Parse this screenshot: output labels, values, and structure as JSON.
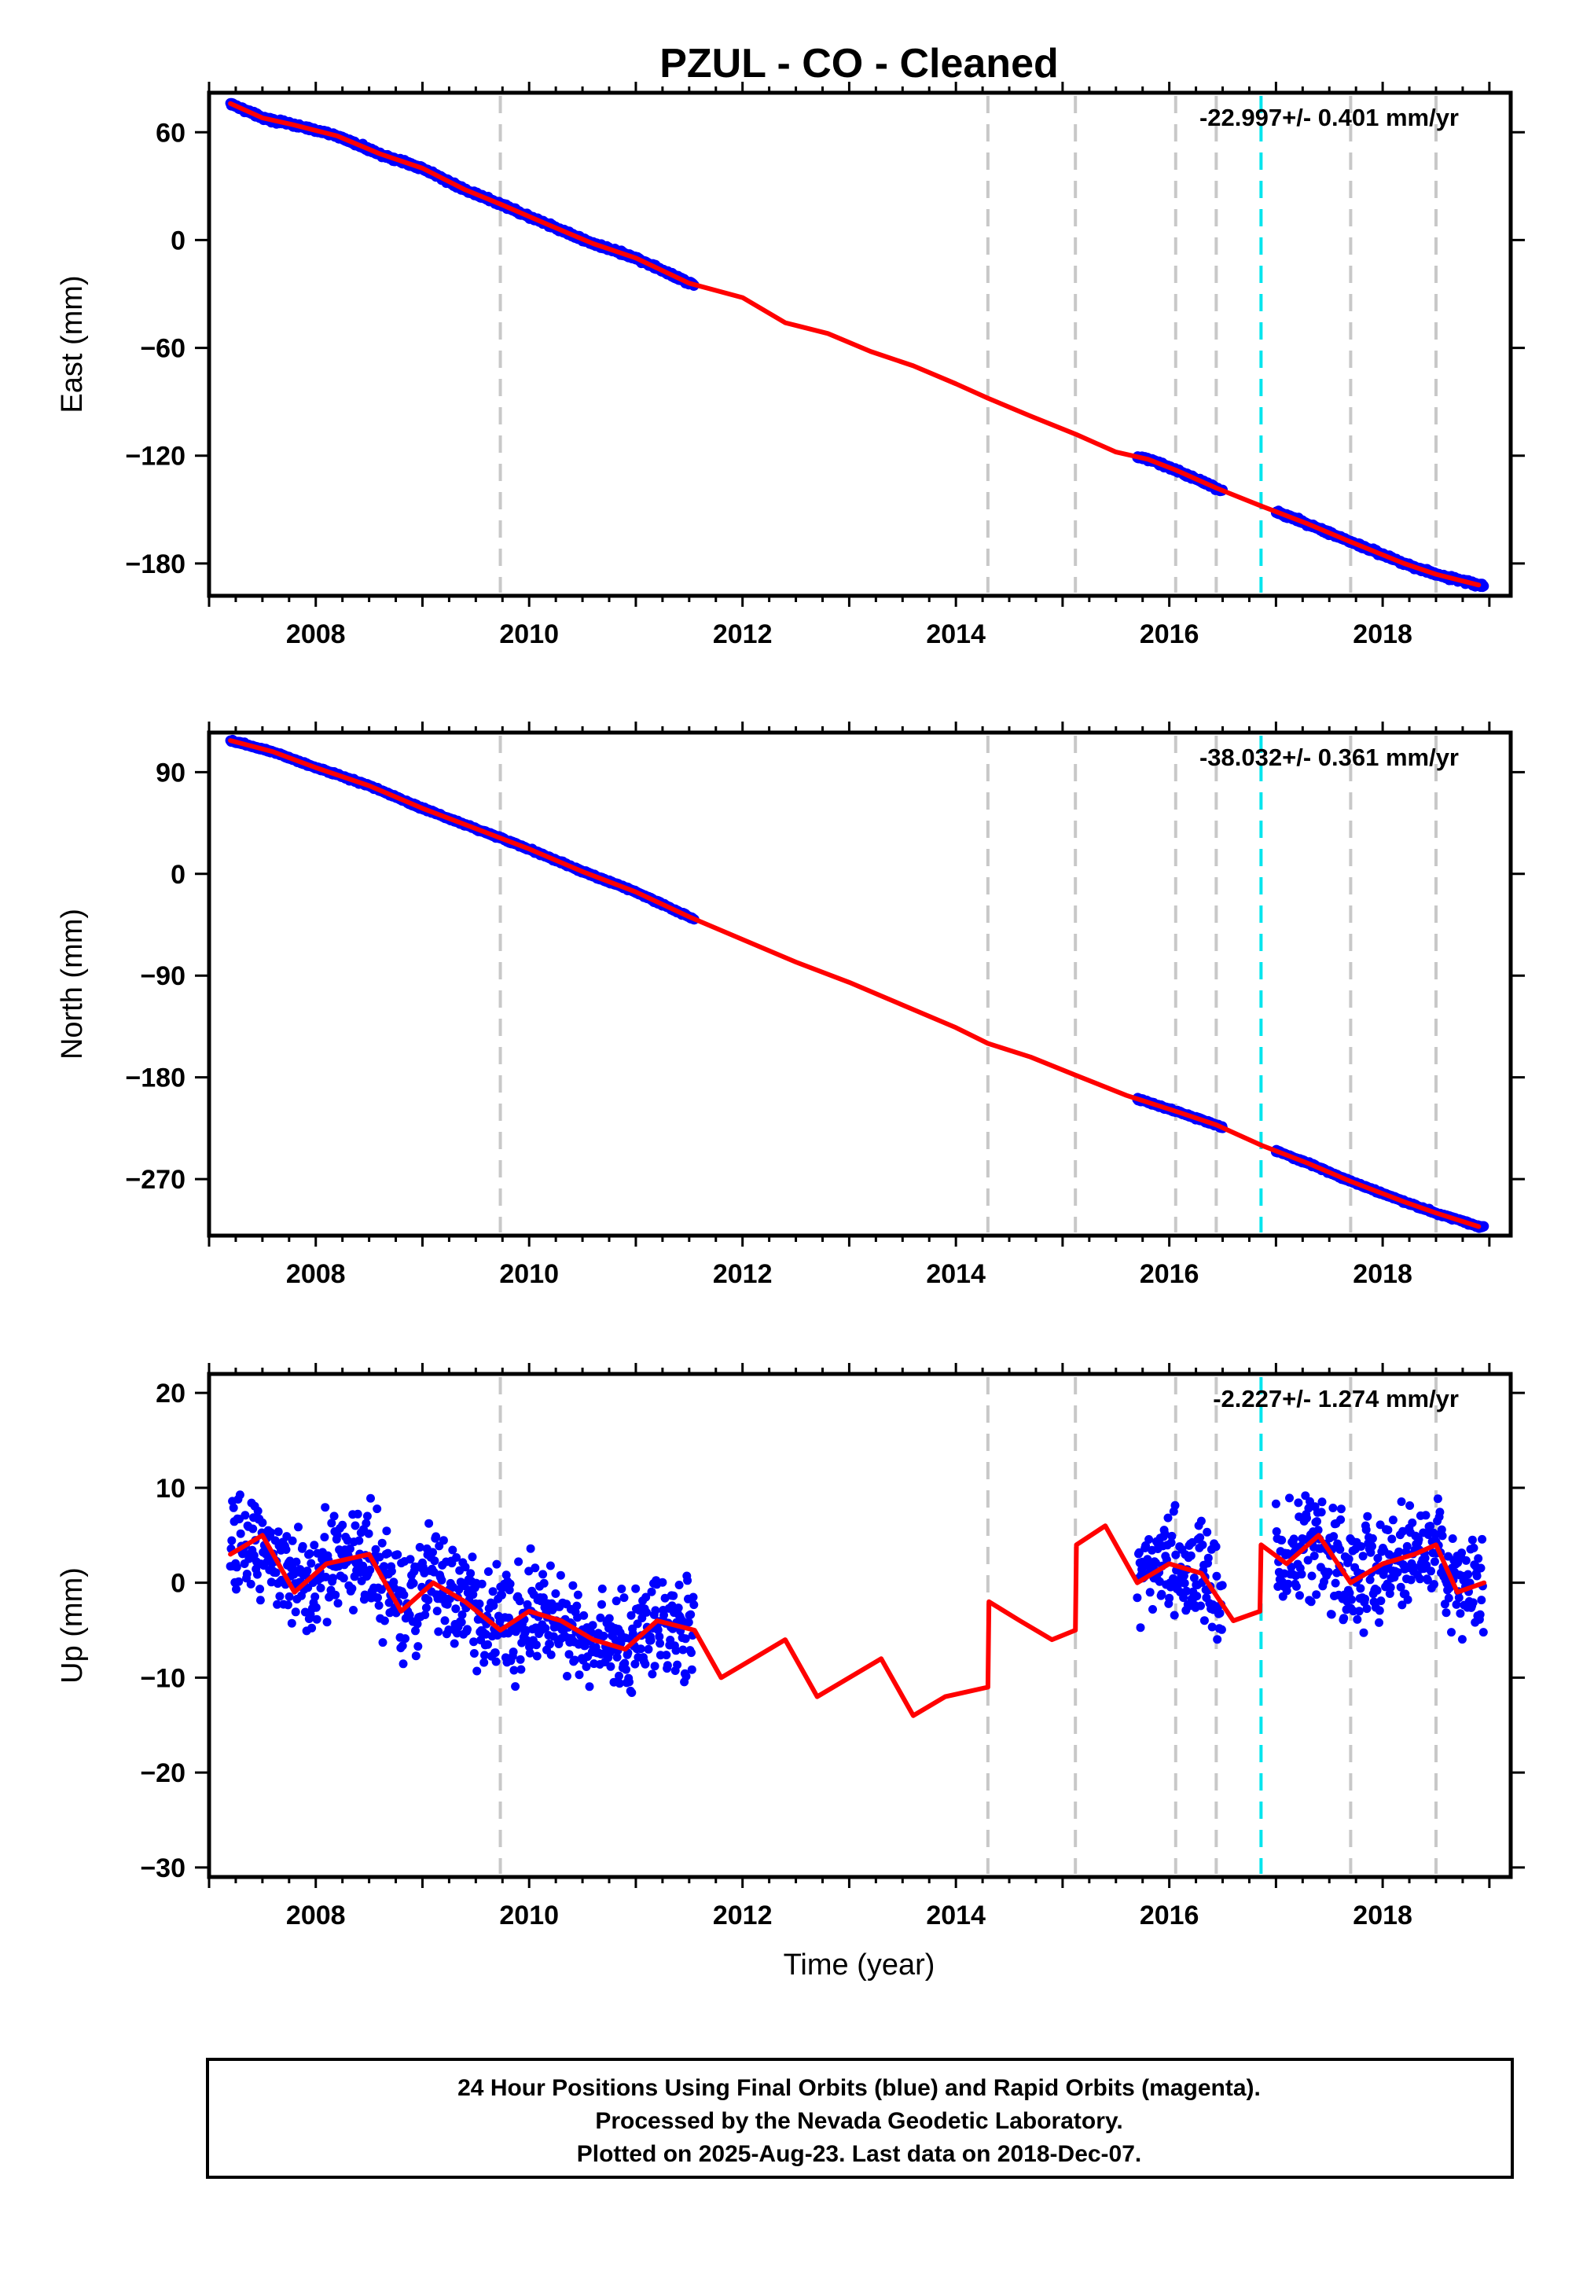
{
  "title": "PZUL  - CO - Cleaned",
  "xlabel": "Time (year)",
  "footer": [
    "24 Hour Positions Using Final Orbits (blue) and Rapid Orbits (magenta).",
    "Processed by the Nevada Geodetic Laboratory.",
    "Plotted on 2025-Aug-23. Last data on 2018-Dec-07."
  ],
  "colors": {
    "data": "#0000ff",
    "model": "#ff0000",
    "event_line": "#c8c8c8",
    "event_line_highlight": "#00e5ee"
  },
  "chart_data": [
    {
      "type": "scatter",
      "ylabel": "East (mm)",
      "rate_label": "-22.997+/- 0.401 mm/yr",
      "xlim": [
        2007.0,
        2019.2
      ],
      "ylim": [
        -198,
        82
      ],
      "xticks": [
        2008,
        2010,
        2012,
        2014,
        2016,
        2018
      ],
      "yticks": [
        60,
        0,
        -60,
        -120,
        -180
      ],
      "event_lines": [
        2009.73,
        2014.3,
        2015.12,
        2016.06,
        2016.44,
        2016.86,
        2017.7,
        2018.5
      ],
      "highlight_event": 2016.86,
      "data_segments": [
        [
          2007.2,
          2011.55
        ],
        [
          2015.7,
          2016.5
        ],
        [
          2017.0,
          2018.95
        ]
      ],
      "model": {
        "x": [
          2007.2,
          2007.5,
          2007.8,
          2008.2,
          2008.6,
          2009.0,
          2009.4,
          2009.73,
          2010.2,
          2010.6,
          2011.0,
          2011.5,
          2012.0,
          2012.4,
          2012.8,
          2013.2,
          2013.6,
          2014.0,
          2014.3,
          2014.7,
          2015.12,
          2015.5,
          2015.8,
          2016.06,
          2016.44,
          2016.86,
          2017.3,
          2017.7,
          2018.2,
          2018.5,
          2018.9
        ],
        "y": [
          76,
          68,
          64,
          58,
          48,
          40,
          28,
          20,
          8,
          -2,
          -10,
          -24,
          -32,
          -46,
          -52,
          -62,
          -70,
          -80,
          -88,
          -98,
          -108,
          -118,
          -122,
          -128,
          -138,
          -148,
          -158,
          -168,
          -180,
          -186,
          -192
        ]
      }
    },
    {
      "type": "scatter",
      "ylabel": "North (mm)",
      "rate_label": "-38.032+/- 0.361 mm/yr",
      "xlim": [
        2007.0,
        2019.2
      ],
      "ylim": [
        -320,
        125
      ],
      "xticks": [
        2008,
        2010,
        2012,
        2014,
        2016,
        2018
      ],
      "yticks": [
        90,
        0,
        -90,
        -180,
        -270
      ],
      "event_lines": [
        2009.73,
        2014.3,
        2015.12,
        2016.06,
        2016.44,
        2016.86,
        2017.7,
        2018.5
      ],
      "highlight_event": 2016.86,
      "data_segments": [
        [
          2007.2,
          2011.55
        ],
        [
          2015.7,
          2016.5
        ],
        [
          2017.0,
          2018.95
        ]
      ],
      "model": {
        "x": [
          2007.2,
          2007.6,
          2008.0,
          2008.5,
          2009.0,
          2009.5,
          2010.0,
          2010.5,
          2011.0,
          2011.5,
          2012.0,
          2012.5,
          2013.0,
          2013.5,
          2014.0,
          2014.3,
          2014.7,
          2015.12,
          2015.6,
          2016.06,
          2016.44,
          2016.86,
          2017.3,
          2017.7,
          2018.2,
          2018.5,
          2018.9
        ],
        "y": [
          118,
          108,
          94,
          78,
          58,
          40,
          22,
          2,
          -16,
          -38,
          -58,
          -78,
          -96,
          -116,
          -136,
          -150,
          -162,
          -178,
          -196,
          -210,
          -222,
          -240,
          -256,
          -272,
          -290,
          -300,
          -312
        ]
      }
    },
    {
      "type": "scatter",
      "ylabel": "Up (mm)",
      "rate_label": "-2.227+/- 1.274 mm/yr",
      "xlim": [
        2007.0,
        2019.2
      ],
      "ylim": [
        -31,
        22
      ],
      "xticks": [
        2008,
        2010,
        2012,
        2014,
        2016,
        2018
      ],
      "yticks": [
        20,
        10,
        0,
        -10,
        -20,
        -30
      ],
      "event_lines": [
        2009.73,
        2014.3,
        2015.12,
        2016.06,
        2016.44,
        2016.86,
        2017.7,
        2018.5
      ],
      "highlight_event": 2016.86,
      "data_segments": [
        [
          2007.2,
          2011.55
        ],
        [
          2015.7,
          2016.5
        ],
        [
          2017.0,
          2018.95
        ]
      ],
      "model": {
        "x": [
          2007.2,
          2007.5,
          2007.8,
          2008.1,
          2008.5,
          2008.8,
          2009.1,
          2009.4,
          2009.73,
          2010.0,
          2010.3,
          2010.6,
          2010.9,
          2011.2,
          2011.55,
          2011.8,
          2012.1,
          2012.4,
          2012.7,
          2013.0,
          2013.3,
          2013.6,
          2013.9,
          2014.3,
          2014.31,
          2014.6,
          2014.9,
          2015.12,
          2015.13,
          2015.4,
          2015.7,
          2016.0,
          2016.3,
          2016.6,
          2016.85,
          2016.86,
          2017.1,
          2017.4,
          2017.7,
          2018.0,
          2018.3,
          2018.5,
          2018.7,
          2018.95
        ],
        "y": [
          3,
          5,
          -1,
          2,
          3,
          -3,
          0,
          -2,
          -5,
          -3,
          -4,
          -6,
          -7,
          -4,
          -5,
          -10,
          -8,
          -6,
          -12,
          -10,
          -8,
          -14,
          -12,
          -11,
          -2,
          -4,
          -6,
          -5,
          4,
          6,
          0,
          2,
          1,
          -4,
          -3,
          4,
          2,
          5,
          0,
          2,
          3,
          4,
          -1,
          0
        ]
      }
    }
  ]
}
